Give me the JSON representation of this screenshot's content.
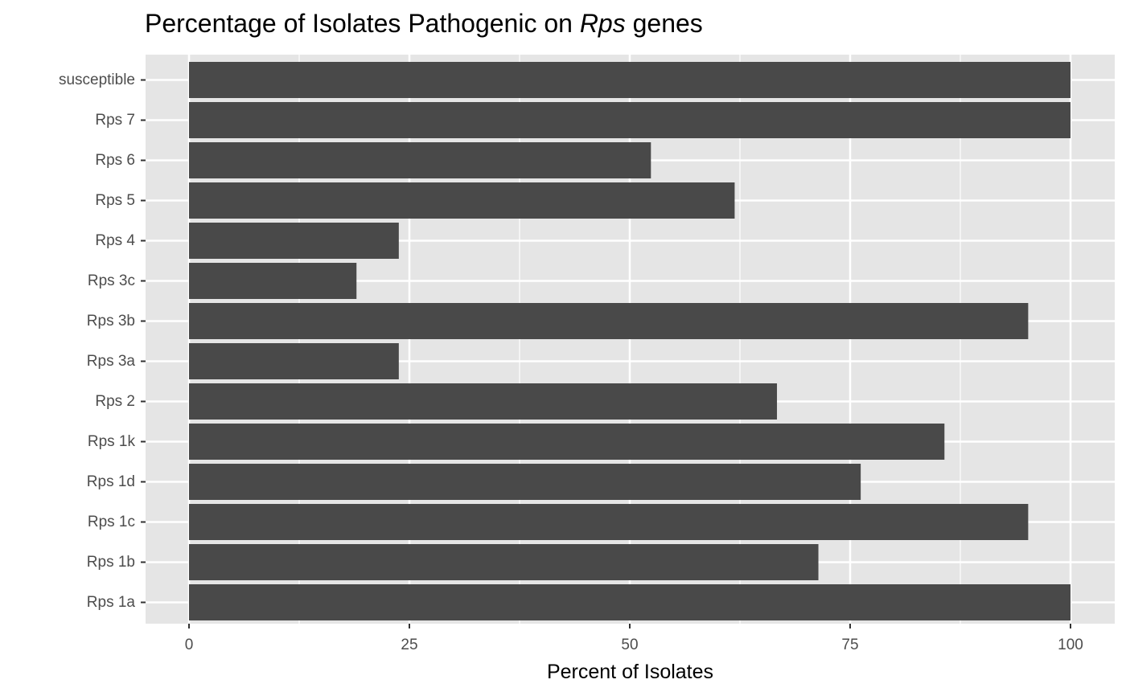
{
  "chart_data": {
    "type": "bar",
    "orientation": "horizontal",
    "title": {
      "prefix": "Percentage of Isolates Pathogenic on ",
      "italic": "Rps",
      "suffix": " genes"
    },
    "xlabel": "Percent of Isolates",
    "ylabel": "",
    "xlim": [
      0,
      100
    ],
    "xticks": [
      0,
      25,
      50,
      75,
      100
    ],
    "xtick_labels": [
      "0",
      "25",
      "50",
      "75",
      "100"
    ],
    "categories": [
      "Rps 1a",
      "Rps 1b",
      "Rps 1c",
      "Rps 1d",
      "Rps 1k",
      "Rps 2",
      "Rps 3a",
      "Rps 3b",
      "Rps 3c",
      "Rps 4",
      "Rps 5",
      "Rps 6",
      "Rps 7",
      "susceptible"
    ],
    "values": [
      100,
      71.4,
      95.2,
      76.2,
      85.7,
      66.7,
      23.8,
      95.2,
      19.0,
      23.8,
      61.9,
      52.4,
      100,
      100
    ],
    "grid": true,
    "legend": "none",
    "colors": {
      "bar": "#494949",
      "panel": "#e5e5e5",
      "grid": "#ffffff",
      "tick": "#333333"
    }
  }
}
